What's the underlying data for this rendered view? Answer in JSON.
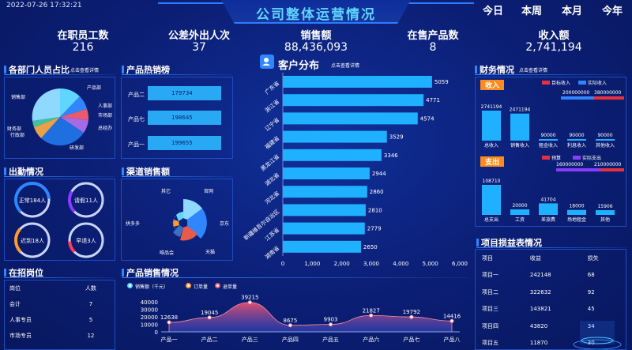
{
  "header": {
    "datetime": "2022-07-26 17:32:21",
    "title": "公司整体运营情况",
    "periods": [
      "今日",
      "本周",
      "本月",
      "今年"
    ]
  },
  "kpis": [
    {
      "label": "在职员工数",
      "value": "216"
    },
    {
      "label": "公差外出人次",
      "value": "37"
    },
    {
      "label": "销售额",
      "value": "88,436,093"
    },
    {
      "label": "在售产品数",
      "value": "8"
    },
    {
      "label": "收入额",
      "value": "2,741,194"
    }
  ],
  "dept": {
    "title": "各部门人员占比",
    "link": "点击查看详情",
    "labels": [
      "产品部",
      "人事部",
      "市场部",
      "总经办",
      "研发部",
      "财务部",
      "行政部",
      "销售部"
    ]
  },
  "hot_products": {
    "title": "产品热销榜",
    "items": [
      {
        "name": "产品二",
        "value": "179734"
      },
      {
        "name": "产品七",
        "value": "198645"
      },
      {
        "name": "产品一",
        "value": "199655"
      }
    ]
  },
  "customers": {
    "title": "客户分布",
    "link": "点击查看详情",
    "chart_data": {
      "type": "bar",
      "orientation": "horizontal",
      "categories": [
        "广东省",
        "浙江省",
        "辽宁省",
        "福建省",
        "黑龙江省",
        "湖北省",
        "河北省",
        "新疆维吾尔自治区",
        "江苏省",
        "湖南省"
      ],
      "values": [
        5059,
        4771,
        4574,
        3529,
        3346,
        2944,
        2860,
        2810,
        2779,
        2650
      ],
      "xlim": [
        0,
        6000
      ],
      "xticks": [
        "0",
        "1,000",
        "2,000",
        "3,000",
        "4,000",
        "5,000",
        "6,000"
      ],
      "color": "#1fb1ff"
    }
  },
  "finance": {
    "title": "财务情况",
    "link": "点击查看详情",
    "income": {
      "tag": "收入",
      "legend": [
        "目标收入",
        "实际收入"
      ],
      "target_value": "380000000",
      "actual_value": "200000000",
      "chart_data": {
        "type": "bar",
        "categories": [
          "总收入",
          "销售收入",
          "租金收入",
          "利息收入",
          "其他收入"
        ],
        "values": [
          2741194,
          2471194,
          90000,
          90000,
          90000
        ]
      },
      "value_labels": [
        "2741194",
        "2471194",
        "90000",
        "90000",
        "90000"
      ]
    },
    "expense": {
      "tag": "支出",
      "legend": [
        "预算",
        "实际支出"
      ],
      "budget_value": "210000000",
      "actual_value": "160000000",
      "chart_data": {
        "type": "bar",
        "categories": [
          "总支出",
          "工资",
          "差旅费",
          "场地租金",
          "其他"
        ],
        "values": [
          108710,
          20000,
          41704,
          18000,
          15906
        ]
      },
      "value_labels": [
        "108710",
        "20000",
        "41704",
        "18000",
        "15906"
      ]
    }
  },
  "attendance": {
    "title": "出勤情况",
    "items": [
      {
        "label": "正常184人",
        "color": "#2f86ff",
        "fraction": 0.82
      },
      {
        "label": "请假11人",
        "color": "#8a3cff",
        "fraction": 0.28
      },
      {
        "label": "迟到18人",
        "color": "#ff9a2e",
        "fraction": 0.32
      },
      {
        "label": "早退3人",
        "color": "#ff3b5c",
        "fraction": 0.15
      }
    ]
  },
  "channels": {
    "title": "渠道销售额",
    "labels": [
      "官网",
      "京东",
      "天猫",
      "唯品会",
      "拼多多",
      "其它"
    ]
  },
  "recruit": {
    "title": "在招岗位",
    "headers": [
      "岗位",
      "人数"
    ],
    "rows": [
      [
        "会计",
        "7"
      ],
      [
        "人事专员",
        "5"
      ],
      [
        "市场专员",
        "12"
      ]
    ]
  },
  "sales": {
    "title": "产品销售情况",
    "legend": [
      "销售额（千元）",
      "订单量",
      "退单量"
    ],
    "chart_data": {
      "type": "area",
      "categories": [
        "产品一",
        "产品二",
        "产品三",
        "产品四",
        "产品五",
        "产品六",
        "产品七",
        "产品八"
      ],
      "values": [
        12638,
        19045,
        39215,
        8675,
        9903,
        21827,
        19792,
        14416
      ],
      "ylim": [
        0,
        40000
      ],
      "yticks": [
        "40000",
        "30000",
        "20000",
        "10000",
        "0"
      ]
    }
  },
  "profit": {
    "title": "项目损益表情况",
    "headers": [
      "项目",
      "收益",
      "损失"
    ],
    "rows": [
      [
        "项目一",
        "242148",
        "68"
      ],
      [
        "项目二",
        "322632",
        "92"
      ],
      [
        "项目三",
        "143821",
        "45"
      ],
      [
        "项目四",
        "43820",
        "34"
      ],
      [
        "项目五",
        "11870",
        "30"
      ]
    ]
  }
}
